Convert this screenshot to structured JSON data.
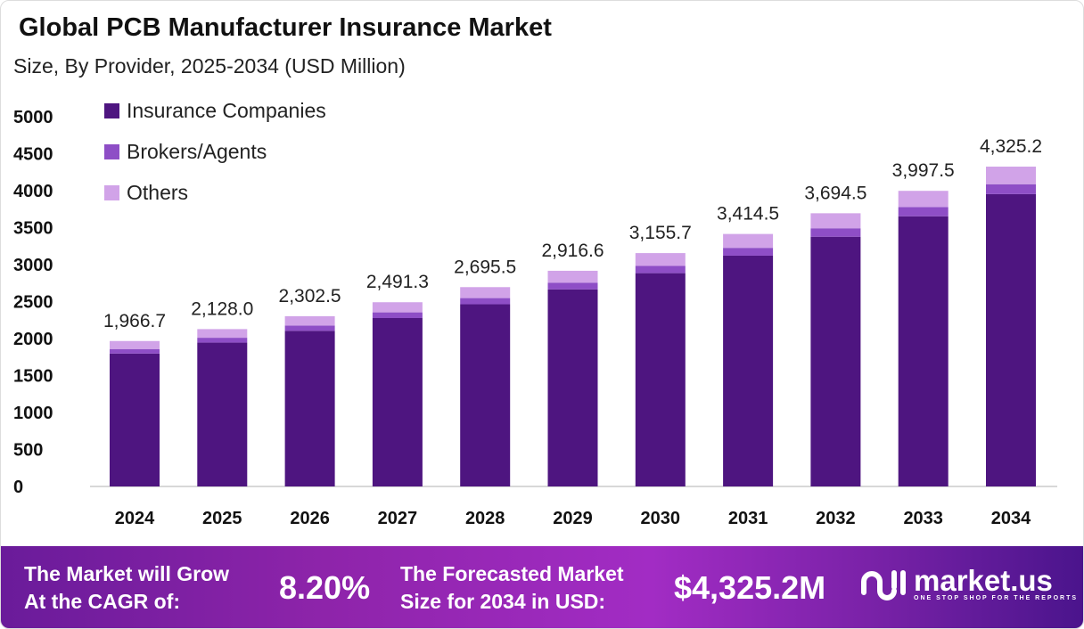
{
  "chart_data": {
    "type": "bar",
    "stacked": true,
    "title": "Global PCB Manufacturer  Insurance Market",
    "subtitle": "Size, By Provider, 2025-2034 (USD Million)",
    "categories": [
      "2024",
      "2025",
      "2026",
      "2027",
      "2028",
      "2029",
      "2030",
      "2031",
      "2032",
      "2033",
      "2034"
    ],
    "series": [
      {
        "name": "Insurance Companies",
        "color": "#4e1580",
        "values": [
          1797.5,
          1945.0,
          2104.5,
          2277.1,
          2463.6,
          2665.8,
          2884.3,
          3120.9,
          3376.8,
          3653.7,
          3953.2
        ]
      },
      {
        "name": "Brokers/Agents",
        "color": "#8e4ec6",
        "values": [
          61.0,
          66.0,
          71.4,
          77.2,
          83.6,
          90.4,
          97.8,
          105.8,
          114.5,
          123.9,
          134.1
        ]
      },
      {
        "name": "Others",
        "color": "#d1a3e8",
        "values": [
          108.2,
          117.0,
          126.6,
          137.0,
          148.3,
          160.4,
          173.6,
          187.8,
          203.2,
          219.9,
          237.9
        ]
      }
    ],
    "totals": [
      "1,966.7",
      "2,128.0",
      "2,302.5",
      "2,491.3",
      "2,695.5",
      "2,916.6",
      "3,155.7",
      "3,414.5",
      "3,694.5",
      "3,997.5",
      "4,325.2"
    ],
    "ylim": [
      0,
      5000
    ],
    "yticks": [
      "0",
      "500",
      "1000",
      "1500",
      "2000",
      "2500",
      "3000",
      "3500",
      "4000",
      "4500",
      "5000"
    ],
    "legend_placement": "top-left",
    "grid": false
  },
  "banner": {
    "cagr_label_1": "The Market will Grow",
    "cagr_label_2": "At the CAGR of:",
    "cagr_value": "8.20%",
    "forecast_label_1": "The Forecasted Market",
    "forecast_label_2": "Size for 2034 in USD:",
    "forecast_value": "$4,325.2M",
    "logo_name": "market.us",
    "logo_tagline": "ONE STOP SHOP FOR THE REPORTS"
  }
}
